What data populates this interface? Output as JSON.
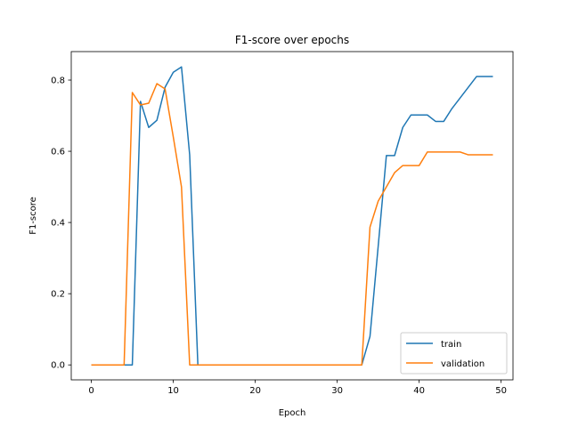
{
  "chart_data": {
    "type": "line",
    "title": "F1-score over epochs",
    "xlabel": "Epoch",
    "ylabel": "F1-score",
    "xlim": [
      -2.45,
      51.45
    ],
    "ylim": [
      -0.042,
      0.88
    ],
    "xticks": [
      0,
      10,
      20,
      30,
      40,
      50
    ],
    "yticks": [
      0.0,
      0.2,
      0.4,
      0.6,
      0.8
    ],
    "xtick_labels": [
      "0",
      "10",
      "20",
      "30",
      "40",
      "50"
    ],
    "ytick_labels": [
      "0.0",
      "0.2",
      "0.4",
      "0.6",
      "0.8"
    ],
    "grid": false,
    "legend_position": "lower-right",
    "x": [
      0,
      1,
      2,
      3,
      4,
      5,
      6,
      7,
      8,
      9,
      10,
      11,
      12,
      13,
      14,
      15,
      16,
      17,
      18,
      19,
      20,
      21,
      22,
      23,
      24,
      25,
      26,
      27,
      28,
      29,
      30,
      31,
      32,
      33,
      34,
      35,
      36,
      37,
      38,
      39,
      40,
      41,
      42,
      43,
      44,
      45,
      46,
      47,
      48,
      49
    ],
    "series": [
      {
        "name": "train",
        "color": "#1f77b4",
        "values": [
          0,
          0,
          0,
          0,
          0,
          0,
          0.74,
          0.667,
          0.687,
          0.78,
          0.822,
          0.837,
          0.59,
          0,
          0,
          0,
          0,
          0,
          0,
          0,
          0,
          0,
          0,
          0,
          0,
          0,
          0,
          0,
          0,
          0,
          0,
          0,
          0,
          0,
          0.08,
          0.333,
          0.588,
          0.588,
          0.667,
          0.702,
          0.702,
          0.702,
          0.684,
          0.684,
          0.72,
          0.75,
          0.78,
          0.81,
          0.81,
          0.81
        ]
      },
      {
        "name": "validation",
        "color": "#ff7f0e",
        "values": [
          0,
          0,
          0,
          0,
          0,
          0.765,
          0.73,
          0.735,
          0.79,
          0.775,
          0.64,
          0.5,
          0,
          0,
          0,
          0,
          0,
          0,
          0,
          0,
          0,
          0,
          0,
          0,
          0,
          0,
          0,
          0,
          0,
          0,
          0,
          0,
          0,
          0,
          0.387,
          0.46,
          0.5,
          0.54,
          0.56,
          0.56,
          0.56,
          0.598,
          0.598,
          0.598,
          0.598,
          0.598,
          0.59,
          0.59,
          0.59,
          0.59
        ]
      }
    ]
  }
}
